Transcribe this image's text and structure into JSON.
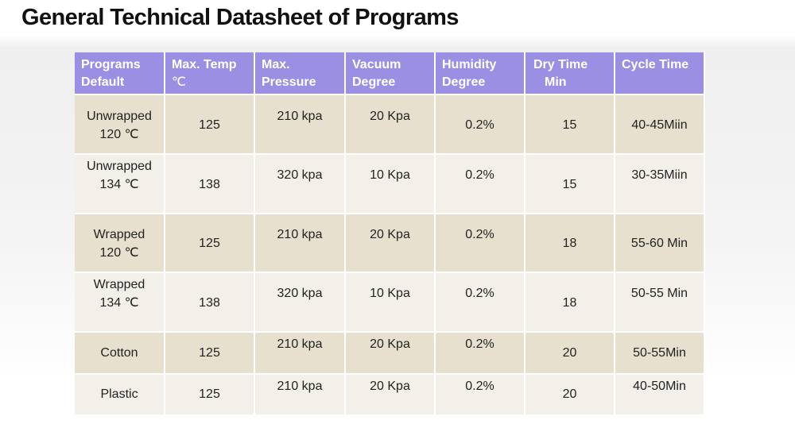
{
  "title": "General Technical Datasheet of Programs",
  "table": {
    "headers": [
      [
        "Programs",
        "Default"
      ],
      [
        "Max. Temp",
        "℃"
      ],
      [
        "Max.",
        "Pressure"
      ],
      [
        "Vacuum",
        "Degree"
      ],
      [
        "Humidity",
        "Degree"
      ],
      [
        "Dry Time",
        "Min"
      ],
      [
        "Cycle Time",
        ""
      ]
    ],
    "rows": [
      [
        [
          "Unwrapped",
          "120 ℃"
        ],
        "125",
        "210 kpa",
        "20  Kpa",
        "0.2%",
        "15",
        "40-45Miin"
      ],
      [
        [
          "Unwrapped",
          "134 ℃"
        ],
        "138",
        "320 kpa",
        "10  Kpa",
        "0.2%",
        "15",
        "30-35Miin"
      ],
      [
        [
          "Wrapped",
          "120 ℃"
        ],
        "125",
        "210 kpa",
        "20  Kpa",
        "0.2%",
        "18",
        "55-60 Min"
      ],
      [
        [
          "Wrapped",
          "134 ℃"
        ],
        "138",
        "320 kpa",
        "10  Kpa",
        "0.2%",
        "18",
        "50-55 Min"
      ],
      [
        [
          "Cotton"
        ],
        "125",
        "210 kpa",
        "20  Kpa",
        "0.2%",
        "20",
        "50-55Min"
      ],
      [
        [
          "Plastic"
        ],
        "125",
        "210 kpa",
        "20  Kpa",
        "0.2%",
        "20",
        "40-50Min"
      ]
    ]
  }
}
